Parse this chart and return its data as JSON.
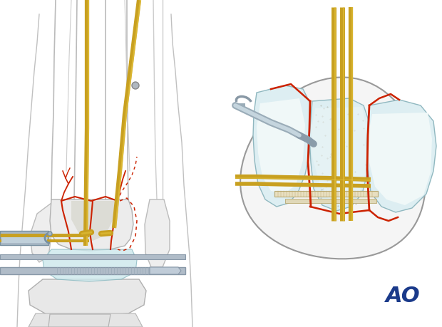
{
  "bg_color": "#ffffff",
  "ao_text": "AO",
  "ao_color": "#1a3a8a",
  "ao_fontsize": 22,
  "fig_width": 6.2,
  "fig_height": 4.59,
  "dpi": 100,
  "kwire_color": "#c8a020",
  "bone_fill": "#f0f0f0",
  "bone_edge": "#aaaaaa",
  "frac_color": "#cc2200",
  "gray_tool": "#9aacb8",
  "art_blue": "#cce0e5"
}
